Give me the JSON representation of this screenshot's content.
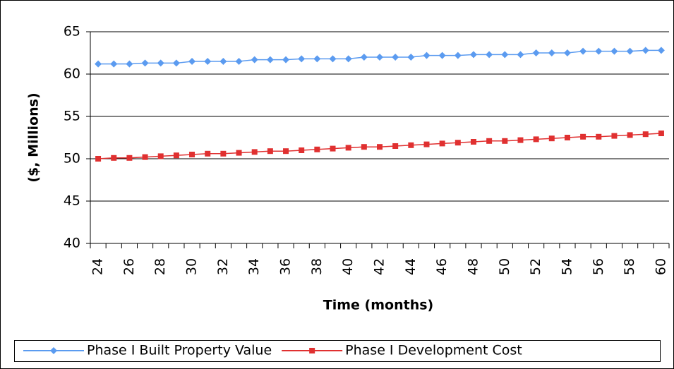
{
  "chart_data": {
    "type": "line",
    "x_label": "Time (months)",
    "y_label": "($, Millions)",
    "categories": [
      24,
      null,
      26,
      null,
      28,
      null,
      30,
      null,
      32,
      null,
      34,
      null,
      36,
      null,
      38,
      null,
      40,
      null,
      42,
      null,
      44,
      null,
      46,
      null,
      48,
      null,
      50,
      null,
      52,
      null,
      54,
      null,
      56,
      null,
      58,
      null,
      60
    ],
    "series": [
      {
        "name": "Phase I Built Property Value",
        "color": "#5b9bf0",
        "marker": "diamond",
        "values": [
          61.2,
          61.2,
          61.2,
          61.3,
          61.3,
          61.3,
          61.5,
          61.5,
          61.5,
          61.5,
          61.7,
          61.7,
          61.7,
          61.8,
          61.8,
          61.8,
          61.8,
          62.0,
          62.0,
          62.0,
          62.0,
          62.2,
          62.2,
          62.2,
          62.3,
          62.3,
          62.3,
          62.3,
          62.5,
          62.5,
          62.5,
          62.7,
          62.7,
          62.7,
          62.7,
          62.8,
          62.8
        ]
      },
      {
        "name": "Phase I Development Cost",
        "color": "#e03030",
        "marker": "square",
        "values": [
          50.0,
          50.1,
          50.1,
          50.2,
          50.3,
          50.4,
          50.5,
          50.6,
          50.6,
          50.7,
          50.8,
          50.9,
          50.9,
          51.0,
          51.1,
          51.2,
          51.3,
          51.4,
          51.4,
          51.5,
          51.6,
          51.7,
          51.8,
          51.9,
          52.0,
          52.1,
          52.1,
          52.2,
          52.3,
          52.4,
          52.5,
          52.6,
          52.6,
          52.7,
          52.8,
          52.9,
          53.0
        ]
      }
    ],
    "ylim": [
      40,
      65
    ],
    "yticks": [
      40,
      45,
      50,
      55,
      60,
      65
    ],
    "grid": true,
    "legend": "bottom"
  }
}
